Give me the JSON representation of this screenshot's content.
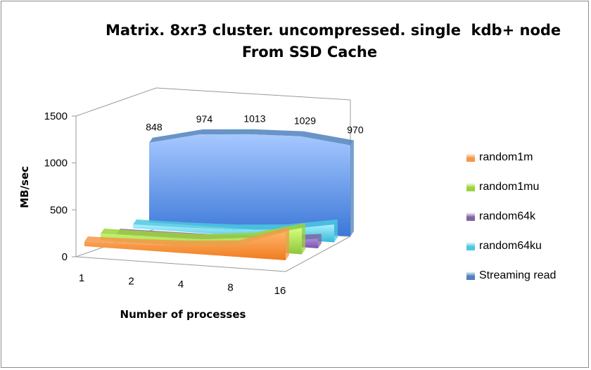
{
  "chart_data": {
    "type": "area",
    "title_lines": [
      "Matrix. 8xr3 cluster. uncompressed. single  kdb+ node",
      "From SSD Cache"
    ],
    "xlabel": "Number of processes",
    "ylabel": "MB/sec",
    "categories": [
      "1",
      "2",
      "4",
      "8",
      "16"
    ],
    "ylim": [
      0,
      1500
    ],
    "yticks": [
      0,
      500,
      1000,
      1500
    ],
    "series": [
      {
        "name": "random1m",
        "color": "#f79646",
        "values": [
          50,
          60,
          80,
          120,
          300
        ]
      },
      {
        "name": "random1mu",
        "color": "#9bd33a",
        "values": [
          70,
          75,
          85,
          140,
          280
        ]
      },
      {
        "name": "random64k",
        "color": "#8064a2",
        "values": [
          5,
          10,
          15,
          40,
          100
        ]
      },
      {
        "name": "random64ku",
        "color": "#4bc8e0",
        "values": [
          40,
          45,
          60,
          100,
          190
        ]
      },
      {
        "name": "Streaming read",
        "color": "#4f81bd",
        "values": [
          848,
          974,
          1013,
          1029,
          970
        ],
        "data_labels": [
          "848",
          "974",
          "1013",
          "1029",
          "970"
        ]
      }
    ],
    "grid": false,
    "legend_position": "right",
    "projection": "3d"
  }
}
